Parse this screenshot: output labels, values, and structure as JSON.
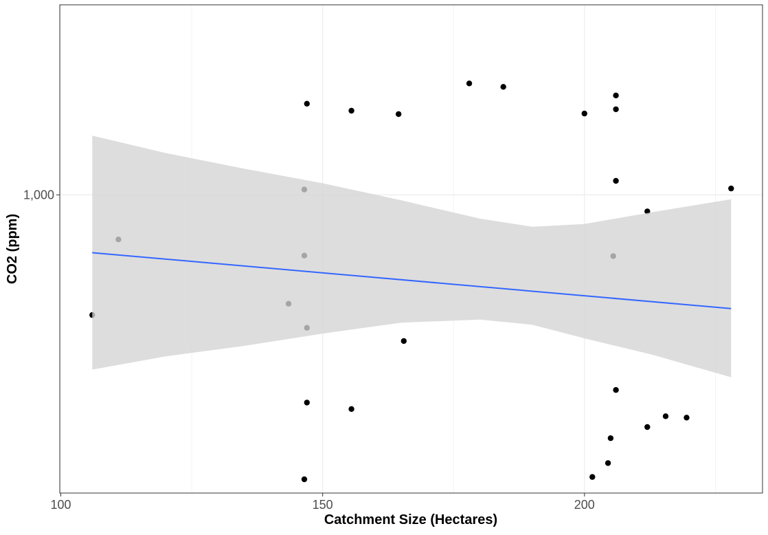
{
  "chart_data": {
    "type": "scatter",
    "xlabel": "Catchment Size (Hectares)",
    "ylabel": "CO2 (ppm)",
    "x_ticks": [
      100,
      150,
      200
    ],
    "x_tick_labels": [
      "100",
      "150",
      "200"
    ],
    "y_scale": "log",
    "y_ticks": [
      1000
    ],
    "y_tick_labels": [
      "1,000"
    ],
    "xlim": [
      99.8,
      234
    ],
    "ylim": [
      435,
      1700
    ],
    "grid": true,
    "background": "#ffffff",
    "point_color": "#000000",
    "points": [
      {
        "x": 106,
        "y": 715
      },
      {
        "x": 111,
        "y": 883
      },
      {
        "x": 143.5,
        "y": 738
      },
      {
        "x": 146.5,
        "y": 1015
      },
      {
        "x": 146.5,
        "y": 844
      },
      {
        "x": 146.5,
        "y": 452
      },
      {
        "x": 147,
        "y": 1290
      },
      {
        "x": 147,
        "y": 690
      },
      {
        "x": 147,
        "y": 560
      },
      {
        "x": 155.5,
        "y": 1265
      },
      {
        "x": 155.5,
        "y": 550
      },
      {
        "x": 164.5,
        "y": 1253
      },
      {
        "x": 165.5,
        "y": 665
      },
      {
        "x": 178,
        "y": 1365
      },
      {
        "x": 184.5,
        "y": 1352
      },
      {
        "x": 200,
        "y": 1255
      },
      {
        "x": 201.5,
        "y": 455
      },
      {
        "x": 204.5,
        "y": 473
      },
      {
        "x": 205,
        "y": 507
      },
      {
        "x": 205.5,
        "y": 843
      },
      {
        "x": 206,
        "y": 1320
      },
      {
        "x": 206,
        "y": 1270
      },
      {
        "x": 206,
        "y": 1040
      },
      {
        "x": 206,
        "y": 580
      },
      {
        "x": 212,
        "y": 955
      },
      {
        "x": 212,
        "y": 523
      },
      {
        "x": 215.5,
        "y": 539
      },
      {
        "x": 219.5,
        "y": 537
      },
      {
        "x": 228,
        "y": 1018
      }
    ],
    "trend_line": {
      "color": "#3366ff",
      "x": [
        106,
        228
      ],
      "y": [
        851,
        728
      ]
    },
    "confidence_band": {
      "fill": "#d4d4d4",
      "x": [
        106,
        120,
        135,
        150,
        165,
        180,
        190,
        200,
        213,
        228
      ],
      "upper": [
        1180,
        1124,
        1076,
        1033,
        985,
        936,
        915,
        922,
        953,
        988
      ],
      "lower": [
        614,
        637,
        656,
        679,
        700,
        706,
        696,
        670,
        640,
        601
      ]
    }
  }
}
